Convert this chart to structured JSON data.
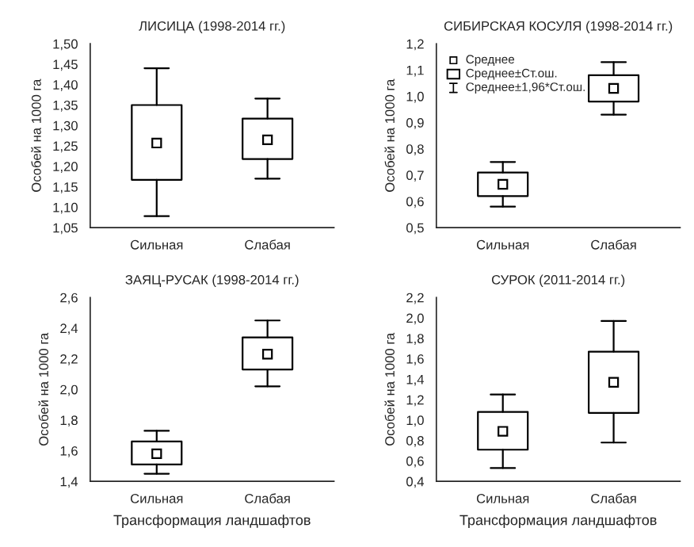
{
  "chart_data": [
    {
      "type": "box",
      "title": "ЛИСИЦА (1998-2014 гг.)",
      "ylabel": "Особей на 1000 га",
      "categories": [
        "Сильная",
        "Слабая"
      ],
      "boxes": [
        {
          "low": 1.078,
          "q1": 1.167,
          "q3": 1.35,
          "high": 1.44,
          "mean": 1.257
        },
        {
          "low": 1.17,
          "q1": 1.218,
          "q3": 1.317,
          "high": 1.366,
          "mean": 1.265
        }
      ],
      "ylim": [
        1.05,
        1.5
      ],
      "yticks": [
        {
          "value": 1.05,
          "label": "1,05"
        },
        {
          "value": 1.1,
          "label": "1,10"
        },
        {
          "value": 1.15,
          "label": "1,15"
        },
        {
          "value": 1.2,
          "label": "1,20"
        },
        {
          "value": 1.25,
          "label": "1,25"
        },
        {
          "value": 1.3,
          "label": "1,30"
        },
        {
          "value": 1.35,
          "label": "1,35"
        },
        {
          "value": 1.4,
          "label": "1,40"
        },
        {
          "value": 1.45,
          "label": "1,45"
        },
        {
          "value": 1.5,
          "label": "1,50"
        }
      ],
      "marker": "square",
      "grid": false
    },
    {
      "type": "box",
      "title": "СИБИРСКАЯ КОСУЛЯ (1998-2014 гг.)",
      "ylabel": "Особей на 1000 га",
      "categories": [
        "Сильная",
        "Слабая"
      ],
      "boxes": [
        {
          "low": 0.58,
          "q1": 0.62,
          "q3": 0.71,
          "high": 0.75,
          "mean": 0.665
        },
        {
          "low": 0.93,
          "q1": 0.98,
          "q3": 1.08,
          "high": 1.13,
          "mean": 1.03
        }
      ],
      "ylim": [
        0.5,
        1.2
      ],
      "yticks": [
        {
          "value": 0.5,
          "label": "0,5"
        },
        {
          "value": 0.6,
          "label": "0,6"
        },
        {
          "value": 0.7,
          "label": "0,7"
        },
        {
          "value": 0.8,
          "label": "0,8"
        },
        {
          "value": 0.9,
          "label": "0,9"
        },
        {
          "value": 1.0,
          "label": "1,0"
        },
        {
          "value": 1.1,
          "label": "1,1"
        },
        {
          "value": 1.2,
          "label": "1,2"
        }
      ],
      "annotations": [
        "Среднее",
        "Среднее±Ст.ош.",
        "Среднее±1,96*Ст.ош."
      ],
      "marker": "square",
      "grid": false
    },
    {
      "type": "box",
      "title": "ЗАЯЦ-РУСАК (1998-2014 гг.)",
      "ylabel": "Особей на 1000 га",
      "xlabel": "Трансформация ландшафтов",
      "categories": [
        "Сильная",
        "Слабая"
      ],
      "boxes": [
        {
          "low": 1.45,
          "q1": 1.51,
          "q3": 1.66,
          "high": 1.73,
          "mean": 1.58
        },
        {
          "low": 2.02,
          "q1": 2.13,
          "q3": 2.34,
          "high": 2.45,
          "mean": 2.23
        }
      ],
      "ylim": [
        1.4,
        2.6
      ],
      "yticks": [
        {
          "value": 1.4,
          "label": "1,4"
        },
        {
          "value": 1.6,
          "label": "1,6"
        },
        {
          "value": 1.8,
          "label": "1,8"
        },
        {
          "value": 2.0,
          "label": "2,0"
        },
        {
          "value": 2.2,
          "label": "2,2"
        },
        {
          "value": 2.4,
          "label": "2,4"
        },
        {
          "value": 2.6,
          "label": "2,6"
        }
      ],
      "marker": "square",
      "grid": false
    },
    {
      "type": "box",
      "title": "СУРОК (2011-2014 гг.)",
      "ylabel": "Особей на 1000 га",
      "xlabel": "Трансформация ландшафтов",
      "categories": [
        "Сильная",
        "Слабая"
      ],
      "boxes": [
        {
          "low": 0.53,
          "q1": 0.71,
          "q3": 1.08,
          "high": 1.25,
          "mean": 0.89
        },
        {
          "low": 0.78,
          "q1": 1.07,
          "q3": 1.67,
          "high": 1.97,
          "mean": 1.37
        }
      ],
      "ylim": [
        0.4,
        2.2
      ],
      "yticks": [
        {
          "value": 0.4,
          "label": "0,4"
        },
        {
          "value": 0.6,
          "label": "0,6"
        },
        {
          "value": 0.8,
          "label": "0,8"
        },
        {
          "value": 1.0,
          "label": "1,0"
        },
        {
          "value": 1.2,
          "label": "1,2"
        },
        {
          "value": 1.4,
          "label": "1,4"
        },
        {
          "value": 1.6,
          "label": "1,6"
        },
        {
          "value": 1.8,
          "label": "1,8"
        },
        {
          "value": 2.0,
          "label": "2,0"
        },
        {
          "value": 2.2,
          "label": "2,2"
        }
      ],
      "marker": "square",
      "grid": false
    }
  ]
}
